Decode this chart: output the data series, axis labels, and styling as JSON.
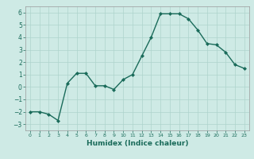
{
  "x": [
    0,
    1,
    2,
    3,
    4,
    5,
    6,
    7,
    8,
    9,
    10,
    11,
    12,
    13,
    14,
    15,
    16,
    17,
    18,
    19,
    20,
    21,
    22,
    23
  ],
  "y": [
    -2.0,
    -2.0,
    -2.2,
    -2.7,
    0.3,
    1.1,
    1.1,
    0.1,
    0.1,
    -0.2,
    0.6,
    1.0,
    2.5,
    4.0,
    5.9,
    5.9,
    5.9,
    5.5,
    4.6,
    3.5,
    3.4,
    2.8,
    1.8,
    1.5
  ],
  "line_color": "#1a6b5a",
  "marker": "D",
  "markersize": 2,
  "linewidth": 1.0,
  "xlabel": "Humidex (Indice chaleur)",
  "xlabel_fontsize": 6.5,
  "background_color": "#ceeae5",
  "grid_color": "#aed4cc",
  "tick_color": "#1a6b5a",
  "spine_color": "#999999",
  "xlim": [
    -0.5,
    23.5
  ],
  "ylim": [
    -3.5,
    6.5
  ],
  "yticks": [
    -3,
    -2,
    -1,
    0,
    1,
    2,
    3,
    4,
    5,
    6
  ],
  "xticks": [
    0,
    1,
    2,
    3,
    4,
    5,
    6,
    7,
    8,
    9,
    10,
    11,
    12,
    13,
    14,
    15,
    16,
    17,
    18,
    19,
    20,
    21,
    22,
    23
  ]
}
